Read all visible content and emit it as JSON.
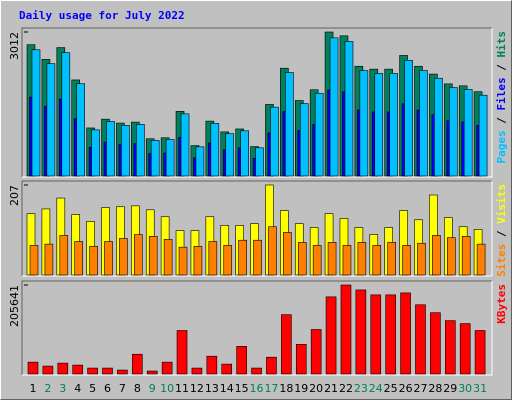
{
  "chart_data": [
    {
      "type": "bar",
      "title": "Daily usage for July 2022",
      "legend_separator": " / ",
      "ylim": [
        0,
        3012
      ],
      "yticks": [
        3012
      ],
      "series": [
        {
          "name": "Hits",
          "color": "#00805c",
          "values": [
            2747,
            2440,
            2686,
            2009,
            1005,
            1189,
            1107,
            1128,
            779,
            800,
            1353,
            636,
            1148,
            923,
            984,
            615,
            1497,
            2255,
            1579,
            1804,
            3012,
            2932,
            2296,
            2235,
            2235,
            2522,
            2296,
            2132,
            1927,
            1886,
            1763
          ]
        },
        {
          "name": "Files",
          "color": "#0000ff",
          "values": [
            1650,
            1460,
            1610,
            1200,
            600,
            710,
            660,
            680,
            470,
            480,
            810,
            380,
            690,
            550,
            590,
            370,
            900,
            1350,
            950,
            1080,
            1800,
            1760,
            1380,
            1340,
            1340,
            1510,
            1380,
            1280,
            1160,
            1130,
            1060
          ]
        },
        {
          "name": "Pages",
          "color": "#00c0ff",
          "values": [
            2640,
            2350,
            2580,
            1930,
            965,
            1140,
            1060,
            1080,
            745,
            765,
            1300,
            610,
            1100,
            885,
            945,
            590,
            1440,
            2165,
            1515,
            1730,
            2890,
            2815,
            2205,
            2145,
            2145,
            2420,
            2205,
            2045,
            1850,
            1810,
            1690
          ]
        }
      ]
    },
    {
      "type": "bar",
      "ylim": [
        0,
        207
      ],
      "yticks": [
        207
      ],
      "series": [
        {
          "name": "Visits",
          "color": "#ffff00",
          "values": [
            141,
            152,
            177,
            139,
            123,
            155,
            157,
            159,
            150,
            134,
            102,
            102,
            134,
            114,
            114,
            118,
            207,
            148,
            118,
            109,
            141,
            130,
            109,
            93,
            109,
            148,
            127,
            184,
            132,
            111,
            105
          ]
        },
        {
          "name": "Sites",
          "color": "#ff8000",
          "values": [
            68,
            71,
            91,
            77,
            66,
            77,
            84,
            93,
            89,
            82,
            64,
            66,
            77,
            68,
            80,
            80,
            111,
            98,
            75,
            68,
            75,
            68,
            75,
            68,
            75,
            68,
            73,
            91,
            86,
            89,
            71
          ]
        }
      ]
    },
    {
      "type": "bar",
      "ylim": [
        0,
        205641
      ],
      "yticks": [
        205641
      ],
      "categories": [
        "1",
        "2",
        "3",
        "4",
        "5",
        "6",
        "7",
        "8",
        "9",
        "10",
        "11",
        "12",
        "13",
        "14",
        "15",
        "16",
        "17",
        "18",
        "19",
        "20",
        "21",
        "22",
        "23",
        "24",
        "25",
        "26",
        "27",
        "28",
        "29",
        "30",
        "31"
      ],
      "category_colors": [
        "#000000",
        "#00805c",
        "#00805c",
        "#000000",
        "#000000",
        "#000000",
        "#000000",
        "#000000",
        "#00805c",
        "#00805c",
        "#000000",
        "#000000",
        "#000000",
        "#000000",
        "#000000",
        "#00805c",
        "#00805c",
        "#000000",
        "#000000",
        "#000000",
        "#000000",
        "#000000",
        "#00805c",
        "#00805c",
        "#000000",
        "#000000",
        "#000000",
        "#000000",
        "#000000",
        "#00805c",
        "#00805c"
      ],
      "series": [
        {
          "name": "KBytes",
          "color": "#ff0000",
          "values": [
            27420,
            18280,
            25135,
            20565,
            13710,
            13710,
            9140,
            45700,
            6855,
            27420,
            100540,
            13710,
            41130,
            22850,
            63980,
            13710,
            38845,
            137100,
            68550,
            102825,
            178230,
            205641,
            194225,
            182800,
            182800,
            187370,
            159950,
            141670,
            123390,
            116535,
            100540
          ]
        }
      ]
    }
  ]
}
